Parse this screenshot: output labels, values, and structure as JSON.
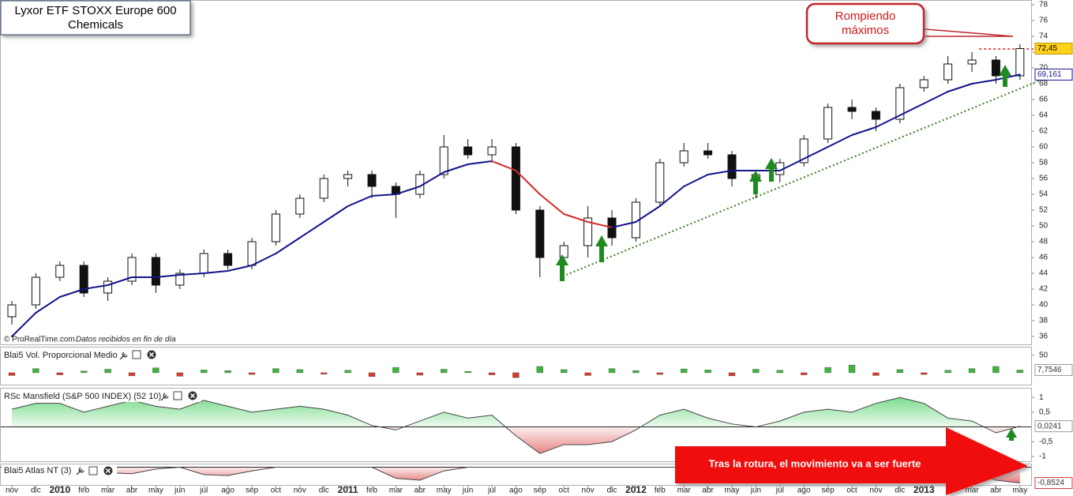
{
  "chart_data": [
    {
      "type": "candlestick",
      "title": "Lyxor ETF STOXX Europe 600",
      "subtitle": "Chemicals",
      "watermark": "© ProRealTime.com",
      "source_note": "Datos recibidos en fin de día",
      "callout": [
        "Rompiendo",
        "máximos"
      ],
      "banner": "Tras la rotura, el movimiento va a ser fuerte",
      "x": [
        0,
        1,
        2,
        3,
        4,
        5,
        6,
        7,
        8,
        9,
        10,
        11,
        12,
        13,
        14,
        15,
        16,
        17,
        18,
        19,
        20,
        21,
        22,
        23,
        24,
        25,
        26,
        27,
        28,
        29,
        30,
        31,
        32,
        33,
        34,
        35,
        36,
        37,
        38,
        39,
        40,
        41,
        42
      ],
      "open": [
        38.5,
        40,
        43.5,
        45,
        41.5,
        43,
        46,
        42.5,
        44,
        46.5,
        45,
        48,
        51.5,
        53.5,
        56,
        56.5,
        55,
        54,
        56.5,
        60,
        59,
        60,
        52,
        46,
        47.5,
        51,
        48.5,
        53,
        58,
        59.5,
        59,
        56,
        56.5,
        58,
        61,
        65,
        64.5,
        63.5,
        67.5,
        68.5,
        70.5,
        71,
        69
      ],
      "high": [
        40.5,
        44,
        45.5,
        45.5,
        43.5,
        46.5,
        46.5,
        44.5,
        47,
        47,
        48.5,
        52,
        54,
        56.5,
        57,
        57,
        55.5,
        57,
        61.5,
        61,
        61,
        60.5,
        52.5,
        48,
        52.5,
        52,
        53.5,
        58.5,
        60.5,
        60.5,
        59.5,
        57,
        58.5,
        61.5,
        65.5,
        66,
        65,
        68,
        69,
        71.5,
        72,
        71.5,
        73
      ],
      "low": [
        37.5,
        39.5,
        43,
        41,
        40.5,
        42.5,
        41.5,
        42,
        43.5,
        44.5,
        44.5,
        47.5,
        51,
        53,
        55,
        53.5,
        51,
        53.5,
        56,
        58.5,
        58,
        51.5,
        43.5,
        44,
        46,
        47.5,
        48,
        52.5,
        57.5,
        58.5,
        55,
        53.5,
        55.5,
        57.5,
        60.5,
        63.5,
        62,
        63,
        67,
        68,
        69.5,
        68,
        68.5
      ],
      "close": [
        40,
        43.5,
        45,
        41.5,
        43,
        46,
        42.5,
        44,
        46.5,
        45,
        48,
        51.5,
        53.5,
        56,
        56.5,
        55,
        54,
        56.5,
        60,
        59,
        60,
        52,
        46,
        47.5,
        51,
        48.5,
        53,
        58,
        59.5,
        59,
        56,
        56.5,
        58,
        61,
        65,
        64.5,
        63.5,
        67.5,
        68.5,
        70.5,
        71,
        69,
        72.45
      ],
      "ma_values": [
        36,
        39,
        41,
        42,
        42.5,
        43.5,
        43.5,
        43.8,
        44,
        44.3,
        45,
        46.5,
        48.5,
        50.5,
        52.5,
        53.8,
        54,
        55,
        56.8,
        57.8,
        58.2,
        57,
        54,
        51.5,
        50.5,
        49.8,
        50.5,
        52.5,
        55,
        56.5,
        57,
        57,
        57,
        58.5,
        60,
        61.5,
        62.5,
        64,
        65.5,
        67,
        68,
        68.5,
        69.161
      ],
      "ma_colors": {
        "rising": "#14148c",
        "falling": "#d42a2a"
      },
      "candle_colors": {
        "up": "#ffffff",
        "down": "#111111"
      },
      "ylim": [
        34.9,
        78.6
      ],
      "yticks": [
        36,
        38,
        40,
        42,
        44,
        46,
        48,
        50,
        52,
        54,
        56,
        58,
        60,
        62,
        64,
        66,
        68,
        70,
        72,
        74,
        76,
        78
      ],
      "xticks": [
        {
          "value": 0,
          "label": "nov"
        },
        {
          "value": 1,
          "label": "dic"
        },
        {
          "value": 2,
          "label": "2010"
        },
        {
          "value": 3,
          "label": "feb"
        },
        {
          "value": 4,
          "label": "mar"
        },
        {
          "value": 5,
          "label": "abr"
        },
        {
          "value": 6,
          "label": "may"
        },
        {
          "value": 7,
          "label": "jun"
        },
        {
          "value": 8,
          "label": "jul"
        },
        {
          "value": 9,
          "label": "ago"
        },
        {
          "value": 10,
          "label": "sep"
        },
        {
          "value": 11,
          "label": "oct"
        },
        {
          "value": 12,
          "label": "nov"
        },
        {
          "value": 13,
          "label": "dic"
        },
        {
          "value": 14,
          "label": "2011"
        },
        {
          "value": 15,
          "label": "feb"
        },
        {
          "value": 16,
          "label": "mar"
        },
        {
          "value": 17,
          "label": "abr"
        },
        {
          "value": 18,
          "label": "may"
        },
        {
          "value": 19,
          "label": "jun"
        },
        {
          "value": 20,
          "label": "jul"
        },
        {
          "value": 21,
          "label": "ago"
        },
        {
          "value": 22,
          "label": "sep"
        },
        {
          "value": 23,
          "label": "oct"
        },
        {
          "value": 24,
          "label": "nov"
        },
        {
          "value": 25,
          "label": "dic"
        },
        {
          "value": 26,
          "label": "2012"
        },
        {
          "value": 27,
          "label": "feb"
        },
        {
          "value": 28,
          "label": "mar"
        },
        {
          "value": 29,
          "label": "abr"
        },
        {
          "value": 30,
          "label": "may"
        },
        {
          "value": 31,
          "label": "jun"
        },
        {
          "value": 32,
          "label": "jul"
        },
        {
          "value": 33,
          "label": "ago"
        },
        {
          "value": 34,
          "label": "sep"
        },
        {
          "value": 35,
          "label": "oct"
        },
        {
          "value": 36,
          "label": "nov"
        },
        {
          "value": 37,
          "label": "dic"
        },
        {
          "value": 38,
          "label": "2013"
        },
        {
          "value": 40,
          "label": "mar"
        },
        {
          "value": 41,
          "label": "abr"
        },
        {
          "value": 42,
          "label": "may"
        }
      ],
      "last_price": {
        "value": 72.45,
        "label": "72,45"
      },
      "last_ma": {
        "value": 69.161,
        "label": "69,161"
      },
      "trendline": {
        "x": [
          23.1,
          43.3
        ],
        "values": [
          43.8,
          69.0
        ],
        "color": "#3a7d22"
      },
      "resistance": {
        "x": [
          40.3,
          43.3
        ],
        "value": 72.4,
        "color": "#e02020"
      }
    },
    {
      "type": "bar",
      "title": "Blai5 Vol. Proporcional Medio",
      "values": [
        -8,
        12,
        -6,
        5,
        10,
        -9,
        14,
        -10,
        8,
        6,
        -5,
        12,
        9,
        -4,
        7,
        -11,
        15,
        -7,
        10,
        4,
        -6,
        -14,
        18,
        9,
        -8,
        12,
        6,
        -5,
        11,
        8,
        -9,
        10,
        7,
        -6,
        15,
        22,
        -8,
        9,
        -5,
        7,
        12,
        18,
        7.7546
      ],
      "colors": {
        "positive": "#3cb43c",
        "negative": "#d63a2a"
      },
      "ylim": [
        -34,
        72
      ],
      "yticks": [
        50
      ],
      "last": {
        "value": 7.7546,
        "label": "7,7546"
      }
    },
    {
      "type": "area",
      "title": "RSc Mansfield (S&P 500 INDEX) (52 10)",
      "values": [
        0.6,
        0.8,
        0.8,
        0.5,
        0.7,
        0.9,
        0.7,
        0.6,
        0.9,
        0.7,
        0.5,
        0.6,
        0.7,
        0.6,
        0.4,
        0.05,
        -0.1,
        0.2,
        0.5,
        0.3,
        0.4,
        -0.3,
        -0.9,
        -0.6,
        -0.6,
        -0.5,
        -0.1,
        0.4,
        0.6,
        0.3,
        0.1,
        0.0,
        0.2,
        0.5,
        0.6,
        0.5,
        0.8,
        1.0,
        0.8,
        0.3,
        0.2,
        -0.2,
        0.0241
      ],
      "colors": {
        "positive": "#2fc84a",
        "negative": "#d83a3a"
      },
      "ylim": [
        -1.19,
        1.3
      ],
      "yticks": [
        1,
        {
          "value": 0.5,
          "label": "0,5"
        },
        {
          "value": -0.5,
          "label": "-0,5"
        },
        -1
      ],
      "last": {
        "value": 0.0241,
        "label": "0,0241"
      }
    },
    {
      "type": "area",
      "title": "Blai5 Atlas NT (3)",
      "values": [
        0,
        0,
        0,
        0,
        -0.3,
        -0.35,
        -0.1,
        0,
        -0.4,
        -0.45,
        -0.2,
        0,
        0,
        0,
        0,
        0,
        -0.6,
        -0.7,
        -0.2,
        0,
        0,
        0,
        0,
        0,
        0,
        0,
        0,
        0,
        0,
        0,
        0,
        0,
        0,
        0,
        0,
        0,
        0,
        0,
        0,
        0,
        -0.3,
        -0.7,
        -0.8524
      ],
      "colors": {
        "positive": "#2fc84a",
        "negative": "#d83a3a"
      },
      "ylim": [
        -1.0,
        0.15
      ],
      "last": {
        "value": -0.8524,
        "label": "-0,8524"
      }
    }
  ]
}
